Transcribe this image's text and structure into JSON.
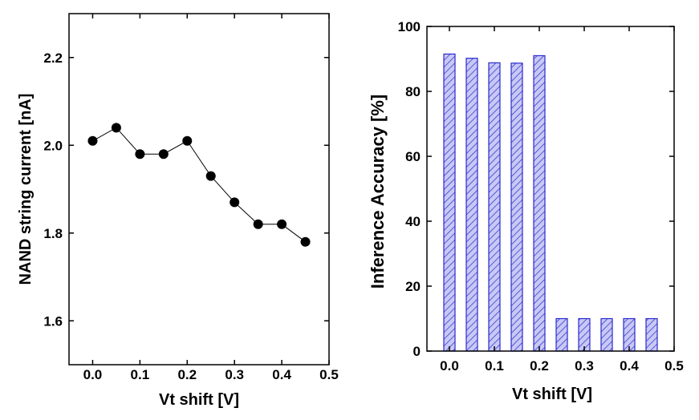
{
  "chart_data": [
    {
      "type": "line",
      "xlabel": "Vt shift [V]",
      "ylabel": "NAND string current [nA]",
      "xlim": [
        -0.05,
        0.5
      ],
      "ylim": [
        1.5,
        2.3
      ],
      "xticks": [
        "0.0",
        "0.1",
        "0.2",
        "0.3",
        "0.4",
        "0.5"
      ],
      "yticks": [
        "1.6",
        "1.8",
        "2.0",
        "2.2"
      ],
      "grid": false,
      "series": [
        {
          "x": [
            0.0,
            0.05,
            0.1,
            0.15,
            0.2,
            0.25,
            0.3,
            0.35,
            0.4,
            0.45
          ],
          "y": [
            2.01,
            2.04,
            1.98,
            1.98,
            2.01,
            1.93,
            1.87,
            1.82,
            1.82,
            1.78
          ]
        }
      ],
      "marker": "circle",
      "color": "#000000"
    },
    {
      "type": "bar",
      "xlabel": "Vt shift [V]",
      "ylabel": "Inference Accuracy [%]",
      "xlim": [
        -0.05,
        0.5
      ],
      "ylim": [
        0,
        100
      ],
      "xticks": [
        "0.0",
        "0.1",
        "0.2",
        "0.3",
        "0.4",
        "0.5"
      ],
      "yticks": [
        "0",
        "20",
        "40",
        "60",
        "80",
        "100"
      ],
      "grid": false,
      "series": [
        {
          "x": [
            0.0,
            0.05,
            0.1,
            0.15,
            0.2,
            0.25,
            0.3,
            0.35,
            0.4,
            0.45
          ],
          "values": [
            91.5,
            90.2,
            88.8,
            88.7,
            91.0,
            10.0,
            10.0,
            10.0,
            10.0,
            10.0
          ]
        }
      ],
      "bar_fill": "#c8c8f4",
      "bar_hatch": "#3a3ad8",
      "bar_edge": "#2a2ad0"
    }
  ]
}
